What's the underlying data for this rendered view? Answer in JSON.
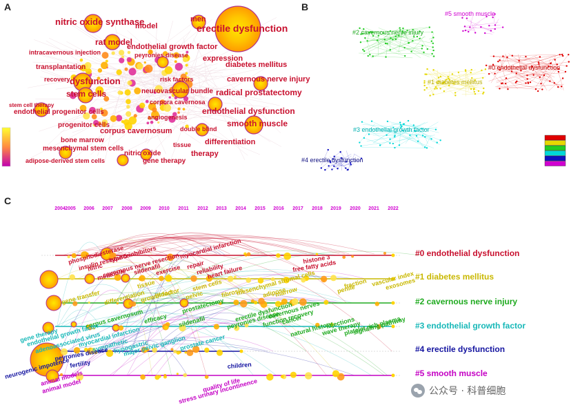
{
  "panels": {
    "a": "A",
    "b": "B",
    "c": "C"
  },
  "panel_a": {
    "keywords": [
      "nitric oxide synthase",
      "model",
      "men",
      "erectile dysfunction",
      "rat model",
      "endothelial growth factor",
      "peyronies disease",
      "intracavernous injection",
      "expression",
      "diabetes mellitus",
      "transplantation",
      "risk factors",
      "cavernous nerve injury",
      "recovery",
      "dysfunction",
      "neurovascular bundle",
      "radical prostatectomy",
      "stem cells",
      "corpora cavernosa",
      "stem cell therapy",
      "endothelial progenitor cells",
      "endothelial dysfunction",
      "angiogenesis",
      "progenitor cells",
      "smooth muscle",
      "bone marrow",
      "corpus cavernosum",
      "double blind",
      "mesenchymal stem cells",
      "differentiation",
      "tissue",
      "nitric oxide",
      "therapy",
      "adipose-derived stem cells",
      "gene therapy"
    ]
  },
  "panel_b": {
    "clusters": [
      "#5 smooth muscle",
      "#2 cavernous nerve injury",
      "#0 endothelial dysfunction",
      "#1 diabetes mellitus",
      "#3 endothelial growth factor",
      "#4 erectile dysfunction"
    ],
    "legend_colors": [
      "#e00000",
      "#e6d800",
      "#22cc22",
      "#00d8d8",
      "#1010c0",
      "#d000d0"
    ]
  },
  "panel_c": {
    "years": [
      "2004",
      "2005",
      "2006",
      "2007",
      "2008",
      "2009",
      "2010",
      "2011",
      "2012",
      "2013",
      "2014",
      "2015",
      "2016",
      "2017",
      "2018",
      "2019",
      "2020",
      "2021",
      "2022"
    ],
    "clusters": [
      {
        "label": "#0 endothelial dysfunction",
        "color": "#c8102e"
      },
      {
        "label": "#1 diabetes mellitus",
        "color": "#c9b800"
      },
      {
        "label": "#2 cavernous nerve injury",
        "color": "#1faa1f"
      },
      {
        "label": "#3 endothelial growth factor",
        "color": "#17b8b8"
      },
      {
        "label": "#4 erectile dysfunction",
        "color": "#1414a0"
      },
      {
        "label": "#5 smooth muscle",
        "color": "#c400c4"
      }
    ],
    "keywords": {
      "c0": [
        "type 5 inhibitors",
        "phosphodiesterase",
        "insulin resistance",
        "nitric",
        "cavernous nerve resection",
        "myocardial infarction",
        "sildenafil",
        "metabolic",
        "exercise",
        "repair",
        "reliability",
        "heart failure",
        "histone 3",
        "free fatty acids"
      ],
      "c1": [
        "gene transfer",
        "tissue",
        "differentiation",
        "growth factor",
        "blood",
        "pelvic",
        "mesenchymal stromal cells",
        "fibrosis",
        "marrow",
        "stem cells",
        "adipose",
        "fraction",
        "penile",
        "vascular index",
        "exosomes"
      ],
      "c2": [
        "efficacy",
        "prostatectomy",
        "corpus cavernosum",
        "sildenafil",
        "erectile dysfunction",
        "peyronies disease",
        "cavernous nerves",
        "function recovery",
        "natural history",
        "injections",
        "cancer",
        "wave therapy",
        "platelet rich plasma",
        "signaling pathway"
      ],
      "c3": [
        "gene therapy",
        "endothelial growth factor",
        "adenoassociated virus",
        "myocardial infarction",
        "sympathetic",
        "major pelvic ganglion",
        "hypogastric",
        "prostate cancer"
      ],
      "c4": [
        "neurogenic impotence",
        "peyronies disease",
        "fertility",
        "children"
      ],
      "c5": [
        "animal models",
        "animal model",
        "quality of life",
        "stress urinary incontinence"
      ]
    }
  },
  "watermark": "公众号 · 科普细胞"
}
